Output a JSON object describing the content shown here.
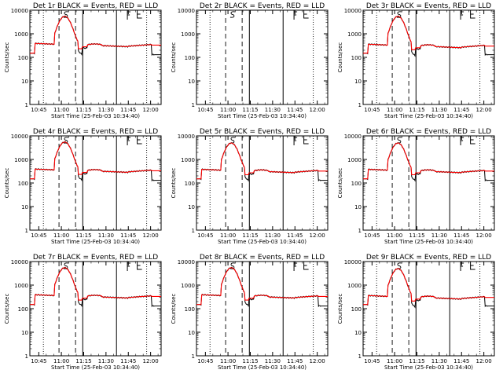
{
  "figure": {
    "background": "#ffffff",
    "x_tick_labels": [
      "10:45",
      "11:00",
      "11:15",
      "11:30",
      "11:45",
      "12:00"
    ],
    "y_tick_labels": [
      "1",
      "10",
      "100",
      "1000",
      "10000"
    ],
    "ylabel": "Counts/sec",
    "xlabel": "Start Time (25-Feb-03 10:34:40)",
    "event_colour": "#000000",
    "lld_colour": "#ff0000"
  },
  "chart_data": [
    {
      "type": "line",
      "title": "Det 1r BLACK = Events, RED = LLD",
      "detector": "1r",
      "has_data": true,
      "xlabel": "Start Time (25-Feb-03 10:34:40)",
      "ylabel": "Counts/sec",
      "ylog": true,
      "ylim": [
        1,
        10000
      ],
      "peak": 5500,
      "baseline": 330,
      "markers": [
        {
          "kind": "dotted",
          "x": 10.3
        },
        {
          "kind": "dashed",
          "x": 22.2
        },
        {
          "kind": "S",
          "x": 27.5
        },
        {
          "kind": "dashed",
          "x": 34.8
        },
        {
          "kind": "solid",
          "x": 40.3
        },
        {
          "kind": "solid",
          "x": 66.0
        },
        {
          "kind": "F",
          "x": 74.3
        },
        {
          "kind": "E",
          "x": 81.8
        },
        {
          "kind": "dotted",
          "x": 89.0
        }
      ],
      "series": [
        {
          "name": "Events",
          "color": "#000000"
        },
        {
          "name": "LLD",
          "color": "#ff0000"
        }
      ]
    },
    {
      "type": "line",
      "title": "Det 2r BLACK = Events, RED = LLD",
      "detector": "2r",
      "has_data": false,
      "xlabel": "Start Time (25-Feb-03 10:34:40)",
      "ylabel": "Counts/sec",
      "ylog": true,
      "ylim": [
        1,
        10000
      ],
      "markers": [
        {
          "kind": "dotted",
          "x": 10.3
        },
        {
          "kind": "dashed",
          "x": 22.2
        },
        {
          "kind": "S",
          "x": 27.5
        },
        {
          "kind": "dashed",
          "x": 34.8
        },
        {
          "kind": "solid",
          "x": 40.3
        },
        {
          "kind": "solid",
          "x": 66.0
        },
        {
          "kind": "F",
          "x": 74.3
        },
        {
          "kind": "E",
          "x": 81.8
        },
        {
          "kind": "dotted",
          "x": 89.0
        }
      ],
      "series": []
    },
    {
      "type": "line",
      "title": "Det 3r BLACK = Events, RED = LLD",
      "detector": "3r",
      "has_data": true,
      "xlabel": "Start Time (25-Feb-03 10:34:40)",
      "ylabel": "Counts/sec",
      "ylog": true,
      "ylim": [
        1,
        10000
      ],
      "peak": 5500,
      "baseline": 300,
      "markers": [
        {
          "kind": "dotted",
          "x": 10.3
        },
        {
          "kind": "dashed",
          "x": 22.2
        },
        {
          "kind": "S",
          "x": 27.5
        },
        {
          "kind": "dashed",
          "x": 34.8
        },
        {
          "kind": "solid",
          "x": 40.3
        },
        {
          "kind": "solid",
          "x": 66.0
        },
        {
          "kind": "F",
          "x": 74.3
        },
        {
          "kind": "E",
          "x": 81.8
        },
        {
          "kind": "dotted",
          "x": 89.0
        }
      ],
      "series": [
        {
          "name": "Events",
          "color": "#000000"
        },
        {
          "name": "LLD",
          "color": "#ff0000"
        }
      ]
    },
    {
      "type": "line",
      "title": "Det 4r BLACK = Events, RED = LLD",
      "detector": "4r",
      "has_data": true,
      "xlabel": "Start Time (25-Feb-03 10:34:40)",
      "ylabel": "Counts/sec",
      "ylog": true,
      "ylim": [
        1,
        10000
      ],
      "peak": 5500,
      "baseline": 330,
      "markers": [
        {
          "kind": "dotted",
          "x": 10.3
        },
        {
          "kind": "dashed",
          "x": 22.2
        },
        {
          "kind": "S",
          "x": 27.5
        },
        {
          "kind": "dashed",
          "x": 34.8
        },
        {
          "kind": "solid",
          "x": 40.3
        },
        {
          "kind": "solid",
          "x": 66.0
        },
        {
          "kind": "F",
          "x": 74.3
        },
        {
          "kind": "E",
          "x": 81.8
        },
        {
          "kind": "dotted",
          "x": 89.0
        }
      ],
      "series": [
        {
          "name": "Events",
          "color": "#000000"
        },
        {
          "name": "LLD",
          "color": "#ff0000"
        }
      ]
    },
    {
      "type": "line",
      "title": "Det 5r BLACK = Events, RED = LLD",
      "detector": "5r",
      "has_data": true,
      "xlabel": "Start Time (25-Feb-03 10:34:40)",
      "ylabel": "Counts/sec",
      "ylog": true,
      "ylim": [
        1,
        10000
      ],
      "peak": 5000,
      "baseline": 320,
      "markers": [
        {
          "kind": "dotted",
          "x": 10.3
        },
        {
          "kind": "dashed",
          "x": 22.2
        },
        {
          "kind": "S",
          "x": 27.5
        },
        {
          "kind": "dashed",
          "x": 34.8
        },
        {
          "kind": "solid",
          "x": 40.3
        },
        {
          "kind": "solid",
          "x": 66.0
        },
        {
          "kind": "F",
          "x": 74.3
        },
        {
          "kind": "E",
          "x": 81.8
        },
        {
          "kind": "dotted",
          "x": 89.0
        }
      ],
      "series": [
        {
          "name": "Events",
          "color": "#000000"
        },
        {
          "name": "LLD",
          "color": "#ff0000"
        }
      ]
    },
    {
      "type": "line",
      "title": "Det 6r BLACK = Events, RED = LLD",
      "detector": "6r",
      "has_data": true,
      "xlabel": "Start Time (25-Feb-03 10:34:40)",
      "ylabel": "Counts/sec",
      "ylog": true,
      "ylim": [
        1,
        10000
      ],
      "peak": 5000,
      "baseline": 320,
      "markers": [
        {
          "kind": "dotted",
          "x": 10.3
        },
        {
          "kind": "dashed",
          "x": 22.2
        },
        {
          "kind": "S",
          "x": 27.5
        },
        {
          "kind": "dashed",
          "x": 34.8
        },
        {
          "kind": "solid",
          "x": 40.3
        },
        {
          "kind": "solid",
          "x": 66.0
        },
        {
          "kind": "F",
          "x": 74.3
        },
        {
          "kind": "E",
          "x": 81.8
        },
        {
          "kind": "dotted",
          "x": 89.0
        }
      ],
      "series": [
        {
          "name": "Events",
          "color": "#000000"
        },
        {
          "name": "LLD",
          "color": "#ff0000"
        }
      ]
    },
    {
      "type": "line",
      "title": "Det 7r BLACK = Events, RED = LLD",
      "detector": "7r",
      "has_data": true,
      "xlabel": "Start Time (25-Feb-03 10:34:40)",
      "ylabel": "Counts/sec",
      "ylog": true,
      "ylim": [
        1,
        10000
      ],
      "peak": 5500,
      "baseline": 330,
      "markers": [
        {
          "kind": "dotted",
          "x": 10.3
        },
        {
          "kind": "dashed",
          "x": 22.2
        },
        {
          "kind": "S",
          "x": 27.5
        },
        {
          "kind": "dashed",
          "x": 34.8
        },
        {
          "kind": "solid",
          "x": 40.3
        },
        {
          "kind": "solid",
          "x": 66.0
        },
        {
          "kind": "F",
          "x": 74.3
        },
        {
          "kind": "E",
          "x": 81.8
        },
        {
          "kind": "dotted",
          "x": 89.0
        }
      ],
      "series": [
        {
          "name": "Events",
          "color": "#000000"
        },
        {
          "name": "LLD",
          "color": "#ff0000"
        }
      ]
    },
    {
      "type": "line",
      "title": "Det 8r BLACK = Events, RED = LLD",
      "detector": "8r",
      "has_data": true,
      "xlabel": "Start Time (25-Feb-03 10:34:40)",
      "ylabel": "Counts/sec",
      "ylog": true,
      "ylim": [
        1,
        10000
      ],
      "peak": 5500,
      "baseline": 330,
      "markers": [
        {
          "kind": "dotted",
          "x": 10.3
        },
        {
          "kind": "dashed",
          "x": 22.2
        },
        {
          "kind": "S",
          "x": 27.5
        },
        {
          "kind": "dashed",
          "x": 34.8
        },
        {
          "kind": "solid",
          "x": 40.3
        },
        {
          "kind": "solid",
          "x": 66.0
        },
        {
          "kind": "F",
          "x": 74.3
        },
        {
          "kind": "E",
          "x": 81.8
        },
        {
          "kind": "dotted",
          "x": 89.0
        }
      ],
      "series": [
        {
          "name": "Events",
          "color": "#000000"
        },
        {
          "name": "LLD",
          "color": "#ff0000"
        }
      ]
    },
    {
      "type": "line",
      "title": "Det 9r BLACK = Events, RED = LLD",
      "detector": "9r",
      "has_data": true,
      "xlabel": "Start Time (25-Feb-03 10:34:40)",
      "ylabel": "Counts/sec",
      "ylog": true,
      "ylim": [
        1,
        10000
      ],
      "peak": 5000,
      "baseline": 300,
      "markers": [
        {
          "kind": "dotted",
          "x": 10.3
        },
        {
          "kind": "dashed",
          "x": 22.2
        },
        {
          "kind": "S",
          "x": 27.5
        },
        {
          "kind": "dashed",
          "x": 34.8
        },
        {
          "kind": "solid",
          "x": 40.3
        },
        {
          "kind": "solid",
          "x": 66.0
        },
        {
          "kind": "F",
          "x": 74.3
        },
        {
          "kind": "E",
          "x": 81.8
        },
        {
          "kind": "dotted",
          "x": 89.0
        }
      ],
      "series": [
        {
          "name": "Events",
          "color": "#000000"
        },
        {
          "name": "LLD",
          "color": "#ff0000"
        }
      ]
    }
  ]
}
